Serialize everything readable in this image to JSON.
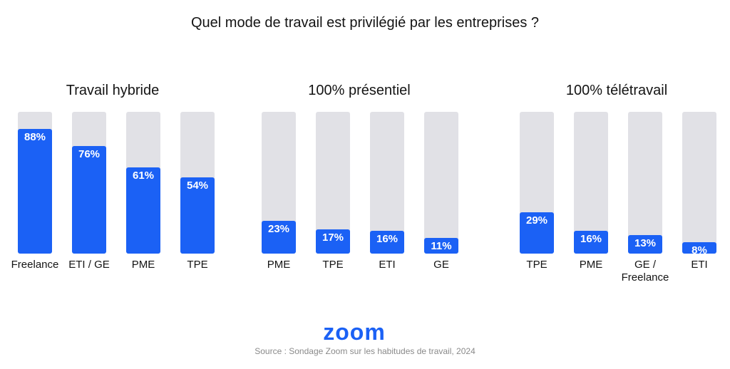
{
  "header": {
    "title": "Quel mode de travail est privilégié par les entreprises ?"
  },
  "chart_data": [
    {
      "type": "bar",
      "title": "Travail hybride",
      "categories": [
        "Freelance",
        "ETI / GE",
        "PME",
        "TPE"
      ],
      "values": [
        88,
        76,
        61,
        54
      ],
      "value_labels": [
        "88%",
        "76%",
        "61%",
        "54%"
      ],
      "ylim": [
        0,
        100
      ]
    },
    {
      "type": "bar",
      "title": "100% présentiel",
      "categories": [
        "PME",
        "TPE",
        "ETI",
        "GE"
      ],
      "values": [
        23,
        17,
        16,
        11
      ],
      "value_labels": [
        "23%",
        "17%",
        "16%",
        "11%"
      ],
      "ylim": [
        0,
        100
      ]
    },
    {
      "type": "bar",
      "title": "100% télétravail",
      "categories": [
        "TPE",
        "PME",
        "GE / Freelance",
        "ETI"
      ],
      "values": [
        29,
        16,
        13,
        8
      ],
      "value_labels": [
        "29%",
        "16%",
        "13%",
        "8%"
      ],
      "ylim": [
        0,
        100
      ]
    }
  ],
  "colors": {
    "bar_fill": "#1b61f5",
    "bar_track": "#e1e1e6",
    "logo": "#1b61f5"
  },
  "footer": {
    "logo_text": "zoom",
    "source": "Source : Sondage Zoom sur les habitudes de travail, 2024"
  }
}
